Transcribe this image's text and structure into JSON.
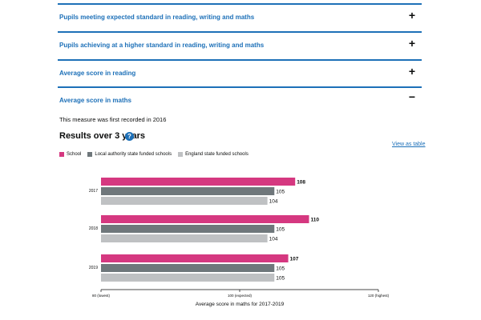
{
  "accordion": [
    {
      "label": "Pupils meeting expected standard in reading, writing and maths",
      "sign": "+"
    },
    {
      "label": "Pupils achieving at a higher standard in reading, writing and maths",
      "sign": "+"
    },
    {
      "label": "Average score in reading",
      "sign": "+"
    },
    {
      "label": "Average score in maths",
      "sign": "−"
    }
  ],
  "section": {
    "intro": "This measure was first recorded in 2016",
    "results_title": "Results over 3 years",
    "help_icon": "?",
    "view_table_link": "View as table"
  },
  "legend": [
    {
      "label": "School",
      "color": "#d53880"
    },
    {
      "label": "Local authority state funded schools",
      "color": "#6f777b"
    },
    {
      "label": "England state funded schools",
      "color": "#bfc1c3"
    }
  ],
  "chart_data": {
    "type": "bar",
    "orientation": "horizontal",
    "categories": [
      "2017",
      "2018",
      "2019"
    ],
    "series": [
      {
        "name": "School",
        "color": "#d53880",
        "values": [
          108,
          110,
          107
        ]
      },
      {
        "name": "Local authority state funded schools",
        "color": "#6f777b",
        "values": [
          105,
          105,
          105
        ]
      },
      {
        "name": "England state funded schools",
        "color": "#bfc1c3",
        "values": [
          104,
          104,
          105
        ]
      }
    ],
    "xlim": [
      80,
      120
    ],
    "ticks": [
      {
        "value": 80,
        "label": "80 (lowest)"
      },
      {
        "value": 100,
        "label": "100 (expected)"
      },
      {
        "value": 120,
        "label": "120 (highest)"
      }
    ],
    "xlabel": "Average score in maths for 2017-2019",
    "grid": false,
    "legend_position": "top-left"
  }
}
